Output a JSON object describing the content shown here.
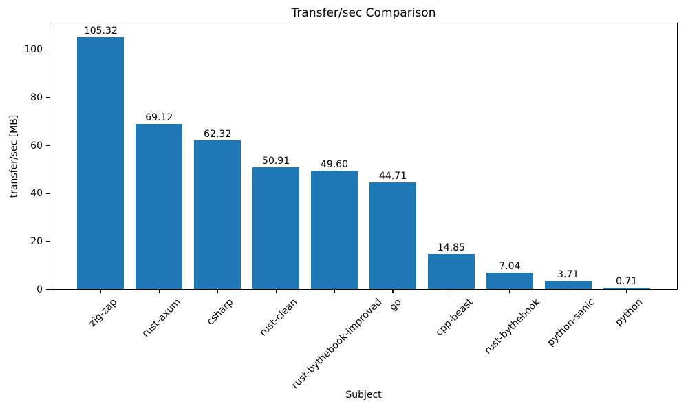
{
  "chart_data": {
    "type": "bar",
    "title": "Transfer/sec Comparison",
    "xlabel": "Subject",
    "ylabel": "transfer/sec [MB]",
    "categories": [
      "zig-zap",
      "rust-axum",
      "csharp",
      "rust-clean",
      "rust-bythebook-improved",
      "go",
      "cpp-beast",
      "rust-bythebook",
      "python-sanic",
      "python"
    ],
    "values": [
      105.32,
      69.12,
      62.32,
      50.91,
      49.6,
      44.71,
      14.85,
      7.04,
      3.71,
      0.71
    ],
    "bar_value_labels": [
      "105.32",
      "69.12",
      "62.32",
      "50.91",
      "49.60",
      "44.71",
      "14.85",
      "7.04",
      "3.71",
      "0.71"
    ],
    "yticks": [
      0,
      20,
      40,
      60,
      80,
      100
    ],
    "ytick_labels": [
      "0",
      "20",
      "40",
      "60",
      "80",
      "100"
    ],
    "ylim": [
      0,
      111.3
    ],
    "bar_color": "#1f77b4",
    "axis_color": "#000000",
    "text_color": "#000000",
    "grid": false,
    "legend_position": "none",
    "x_tick_rotation_deg": 45
  }
}
